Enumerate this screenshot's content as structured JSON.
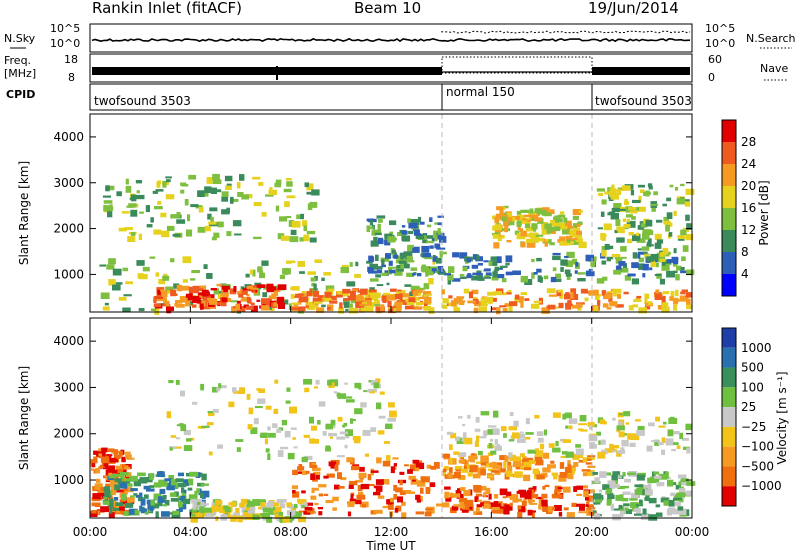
{
  "header": {
    "station": "Rankin Inlet (fitACF)",
    "beam": "Beam 10",
    "date": "19/Jun/2014"
  },
  "noise_panel": {
    "left_label": "N.Sky",
    "right_label": "N.Search",
    "left_ticks": [
      "10^5",
      "10^0"
    ],
    "right_ticks": [
      "10^5",
      "10^0"
    ]
  },
  "freq_panel": {
    "left_label_1": "Freq.",
    "left_label_2": "[MHz]",
    "right_label": "Nave",
    "left_ticks": [
      "18",
      "8"
    ],
    "right_ticks": [
      "60",
      "0"
    ]
  },
  "cpid_panel": {
    "label": "CPID",
    "segments": [
      {
        "name": "twofsound 3503",
        "start_h": 0,
        "end_h": 14
      },
      {
        "name": "normal 150",
        "start_h": 14,
        "end_h": 20
      },
      {
        "name": "twofsound 3503",
        "start_h": 20,
        "end_h": 24
      }
    ]
  },
  "x_axis": {
    "label": "Time UT",
    "ticks": [
      "00:00",
      "04:00",
      "08:00",
      "12:00",
      "16:00",
      "20:00",
      "00:00"
    ]
  },
  "power_panel": {
    "ylabel": "Slant Range [km]",
    "yticks": [
      "1000",
      "2000",
      "3000",
      "4000"
    ],
    "colorbar_label": "Power [dB]",
    "colorbar_ticks": [
      "4",
      "8",
      "12",
      "16",
      "20",
      "24",
      "28"
    ],
    "colors": [
      "#0000ff",
      "#2e5fb8",
      "#3a8a5c",
      "#7fbf3f",
      "#e6d21e",
      "#f59a23",
      "#ef5a20",
      "#e00000"
    ]
  },
  "velocity_panel": {
    "ylabel": "Slant Range [km]",
    "yticks": [
      "1000",
      "2000",
      "3000",
      "4000"
    ],
    "colorbar_label": "Velocity [m s⁻¹]",
    "colorbar_ticks": [
      "1000",
      "500",
      "100",
      "25",
      "−25",
      "−100",
      "−500",
      "−1000"
    ],
    "colors": [
      "#1f3ea8",
      "#2a6fb0",
      "#3b8f5a",
      "#6fc040",
      "#c8c8c8",
      "#f2c318",
      "#f59a23",
      "#f07010",
      "#e00000"
    ]
  },
  "chart_data": {
    "type": "heatmap",
    "x_range_hours": [
      0,
      24
    ],
    "y_range_km": [
      180,
      4500
    ],
    "cpid_changes_h": [
      14,
      20
    ],
    "power_scale_db": [
      0,
      30
    ],
    "velocity_scale_ms": [
      -1000,
      1000
    ],
    "power_regions": [
      {
        "t0": 0.3,
        "t1": 13.8,
        "r0": 250,
        "r1": 1400,
        "level": 3
      },
      {
        "t0": 2.5,
        "t1": 7.5,
        "r0": 300,
        "r1": 800,
        "level": 6
      },
      {
        "t0": 8.0,
        "t1": 13.5,
        "r0": 250,
        "r1": 700,
        "level": 5
      },
      {
        "t0": 0.5,
        "t1": 9.0,
        "r0": 1800,
        "r1": 3200,
        "level": 3
      },
      {
        "t0": 14.0,
        "t1": 23.8,
        "r0": 250,
        "r1": 700,
        "level": 5
      },
      {
        "t0": 14.0,
        "t1": 23.8,
        "r0": 900,
        "r1": 1500,
        "level": 2
      },
      {
        "t0": 16.0,
        "t1": 19.5,
        "r0": 1700,
        "r1": 2500,
        "level": 4
      },
      {
        "t0": 20.2,
        "t1": 23.8,
        "r0": 1300,
        "r1": 3000,
        "level": 3
      },
      {
        "t0": 11.0,
        "t1": 14.0,
        "r0": 1000,
        "r1": 2300,
        "level": 2
      }
    ],
    "velocity_regions": [
      {
        "t0": 0.0,
        "t1": 1.5,
        "r0": 300,
        "r1": 1700,
        "level": 7
      },
      {
        "t0": 0.5,
        "t1": 4.5,
        "r0": 300,
        "r1": 1200,
        "level": 2
      },
      {
        "t0": 3.0,
        "t1": 12.0,
        "r0": 1500,
        "r1": 3200,
        "level": 4
      },
      {
        "t0": 4.0,
        "t1": 8.5,
        "r0": 200,
        "r1": 600,
        "level": 4
      },
      {
        "t0": 8.0,
        "t1": 13.8,
        "r0": 300,
        "r1": 1500,
        "level": 7
      },
      {
        "t0": 14.0,
        "t1": 20.0,
        "r0": 300,
        "r1": 900,
        "level": 7
      },
      {
        "t0": 14.0,
        "t1": 20.0,
        "r0": 1100,
        "r1": 1600,
        "level": 6
      },
      {
        "t0": 14.0,
        "t1": 23.8,
        "r0": 1600,
        "r1": 2500,
        "level": 4
      },
      {
        "t0": 20.0,
        "t1": 23.8,
        "r0": 250,
        "r1": 1200,
        "level": 3
      }
    ]
  }
}
